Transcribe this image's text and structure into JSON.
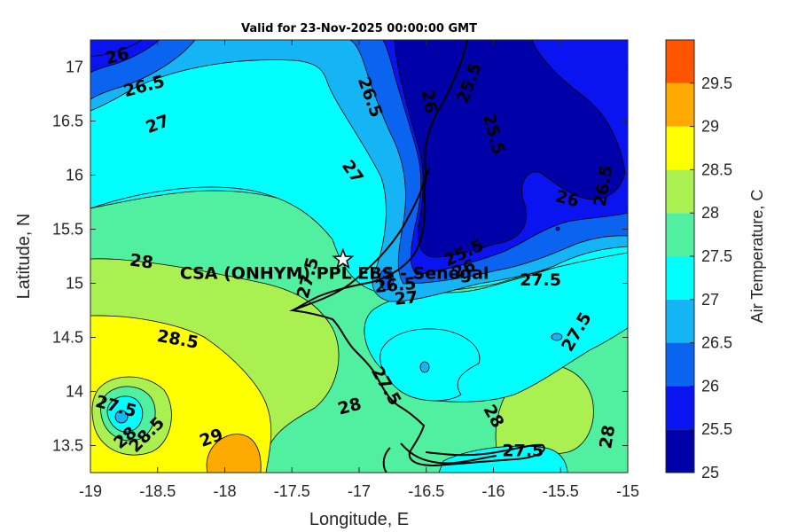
{
  "title": "Valid for 23-Nov-2025 00:00:00 GMT",
  "site": {
    "label": "CSA (ONHYM) PPL EBS - Senegal",
    "lon": -17.12,
    "lat": 15.22
  },
  "colorbar": {
    "label": "Air Temperature, C",
    "ticks": [
      "25",
      "25.5",
      "26",
      "26.5",
      "27",
      "27.5",
      "28",
      "28.5",
      "29",
      "29.5"
    ],
    "bands": [
      {
        "from": 25,
        "to": 25.5,
        "color": "#0000a8"
      },
      {
        "from": 25.5,
        "to": 26,
        "color": "#0a14f0"
      },
      {
        "from": 26,
        "to": 26.5,
        "color": "#0a64f0"
      },
      {
        "from": 26.5,
        "to": 27,
        "color": "#14b4f5"
      },
      {
        "from": 27,
        "to": 27.5,
        "color": "#00ffff"
      },
      {
        "from": 27.5,
        "to": 28,
        "color": "#50f0a0"
      },
      {
        "from": 28,
        "to": 28.5,
        "color": "#aaf050"
      },
      {
        "from": 28.5,
        "to": 29,
        "color": "#ffff00"
      },
      {
        "from": 29,
        "to": 29.5,
        "color": "#ffaa00"
      },
      {
        "from": 29.5,
        "to": 30,
        "color": "#ff5500"
      }
    ]
  },
  "x_axis": {
    "label": "Longitude, E",
    "min": -19,
    "max": -15,
    "ticks": [
      "-19",
      "-18.5",
      "-18",
      "-17.5",
      "-17",
      "-16.5",
      "-16",
      "-15.5",
      "-15"
    ]
  },
  "y_axis": {
    "label": "Latitude, N",
    "min": 13.25,
    "max": 17.25,
    "ticks": [
      "13.5",
      "14",
      "14.5",
      "15",
      "15.5",
      "16",
      "16.5",
      "17"
    ]
  },
  "contour_labels": [
    {
      "text": "26",
      "lon": -18.8,
      "lat": 17.1,
      "rot": -15
    },
    {
      "text": "26.5",
      "lon": -18.6,
      "lat": 16.82,
      "rot": -15
    },
    {
      "text": "27",
      "lon": -18.5,
      "lat": 16.47,
      "rot": -20
    },
    {
      "text": "26.5",
      "lon": -16.92,
      "lat": 16.72,
      "rot": 70
    },
    {
      "text": "26",
      "lon": -16.48,
      "lat": 16.68,
      "rot": 80
    },
    {
      "text": "25.5",
      "lon": -16.18,
      "lat": 16.85,
      "rot": -70
    },
    {
      "text": "25.5",
      "lon": -16.0,
      "lat": 16.38,
      "rot": 75
    },
    {
      "text": "27",
      "lon": -17.05,
      "lat": 16.03,
      "rot": 55
    },
    {
      "text": "26",
      "lon": -15.45,
      "lat": 15.78,
      "rot": 15
    },
    {
      "text": "26.5",
      "lon": -15.18,
      "lat": 15.9,
      "rot": -80
    },
    {
      "text": "28",
      "lon": -18.62,
      "lat": 15.2,
      "rot": 8
    },
    {
      "text": "27.5",
      "lon": -17.38,
      "lat": 15.05,
      "rot": -75
    },
    {
      "text": "25.5",
      "lon": -16.22,
      "lat": 15.28,
      "rot": -25
    },
    {
      "text": "26",
      "lon": -16.22,
      "lat": 15.13,
      "rot": -25
    },
    {
      "text": "26.5",
      "lon": -16.73,
      "lat": 14.98,
      "rot": -5
    },
    {
      "text": "27",
      "lon": -16.65,
      "lat": 14.86,
      "rot": -5
    },
    {
      "text": "27.5",
      "lon": -15.65,
      "lat": 15.03,
      "rot": 0
    },
    {
      "text": "28.5",
      "lon": -18.35,
      "lat": 14.48,
      "rot": 10
    },
    {
      "text": "27.5",
      "lon": -15.38,
      "lat": 14.55,
      "rot": -60
    },
    {
      "text": "27.5",
      "lon": -16.8,
      "lat": 14.05,
      "rot": 60
    },
    {
      "text": "28",
      "lon": -17.07,
      "lat": 13.86,
      "rot": -15
    },
    {
      "text": "27.5",
      "lon": -18.81,
      "lat": 13.86,
      "rot": 15
    },
    {
      "text": "28",
      "lon": -18.74,
      "lat": 13.57,
      "rot": -40
    },
    {
      "text": "28.5",
      "lon": -18.58,
      "lat": 13.6,
      "rot": -45
    },
    {
      "text": "29",
      "lon": -18.1,
      "lat": 13.57,
      "rot": -20
    },
    {
      "text": "28",
      "lon": -16.0,
      "lat": 13.77,
      "rot": 60
    },
    {
      "text": "27.5",
      "lon": -15.78,
      "lat": 13.45,
      "rot": 0
    },
    {
      "text": "28",
      "lon": -15.15,
      "lat": 13.58,
      "rot": -80
    }
  ]
}
